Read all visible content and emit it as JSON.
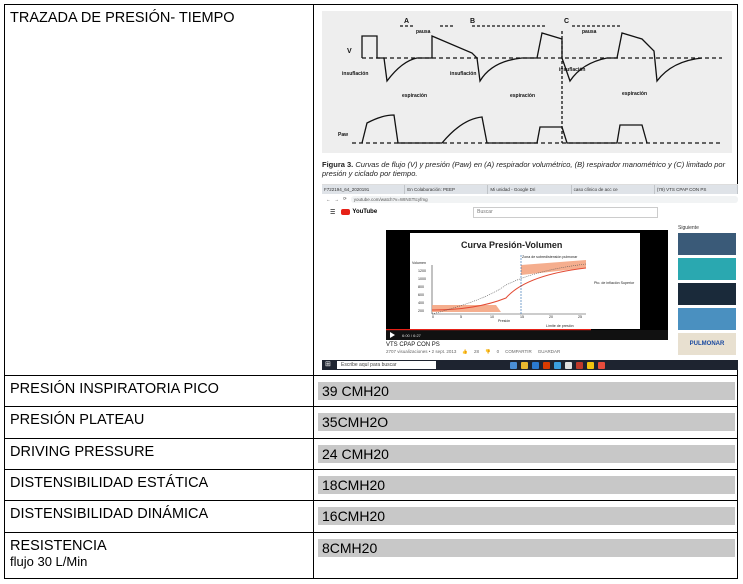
{
  "rows": [
    {
      "label": "PRESIÓN INSPIRATORIA PICO",
      "value": "39 CMH20"
    },
    {
      "label": "PRESIÓN PLATEAU",
      "value": "35CMH2O"
    },
    {
      "label": "DRIVING PRESSURE",
      "value": "24 CMH20"
    },
    {
      "label": "DISTENSIBILIDAD ESTÁTICA",
      "value": "18CMH20"
    },
    {
      "label": "DISTENSIBILIDAD DINÁMICA",
      "value": "16CMH20"
    },
    {
      "label": "RESISTENCIA",
      "sublabel": "flujo 30 L/Min",
      "value": "8CMH20"
    }
  ],
  "header_label": "TRAZADA DE PRESIÓN- TIEMPO",
  "figure": {
    "letters": [
      "A",
      "B",
      "C"
    ],
    "pausa": "pausa",
    "insuflacion": "insuflación",
    "espiracion": "espiración",
    "v_label": "V",
    "paw_label": "Paw",
    "caption_bold": "Figura 3.",
    "caption_text": "Curvas de flujo (V) y presión (Paw) en (A) respirador volumétrico, (B) respirador manométrico y (C) limitado por presión y ciclado por tiempo."
  },
  "youtube": {
    "tabs": [
      "F722194_64_2020191",
      "En Colaboración: PEEP",
      "Mi unidad - Google Dri",
      "caso clínico de acc ce",
      "(79) VTS CPAP CON PS"
    ],
    "url": "youtube.com/watch?v=WINSTtcyfmg",
    "logo": "YouTube",
    "search_placeholder": "Buscar",
    "next_label": "Siguiente",
    "video_title": "Curva Presión-Volumen",
    "chart_labels": {
      "ylabel": "Volumen",
      "xlabel": "Presión",
      "upper": "Zona de sobredistensión pulmonar",
      "upper_inflection": "Pto. de inflación Superior",
      "lower": "Límite de presión",
      "yticks": [
        "1200",
        "1000",
        "800",
        "600",
        "400",
        "200"
      ],
      "xticks": [
        "0",
        "5",
        "10",
        "15",
        "20",
        "25"
      ]
    },
    "time": "6:00 / 6:27",
    "caption": "VTS CPAP CON PS",
    "views": "2707 visualizaciones • 2 sept. 2013",
    "likes": "28",
    "dislikes": "0",
    "share": "COMPARTIR",
    "save": "GUARDAR",
    "taskbar_search": "Escribe aquí para buscar",
    "thumb_text": "PULMONAR",
    "colors": {
      "youtube_red": "#e62117",
      "orange_fill": "#f4a582"
    }
  }
}
